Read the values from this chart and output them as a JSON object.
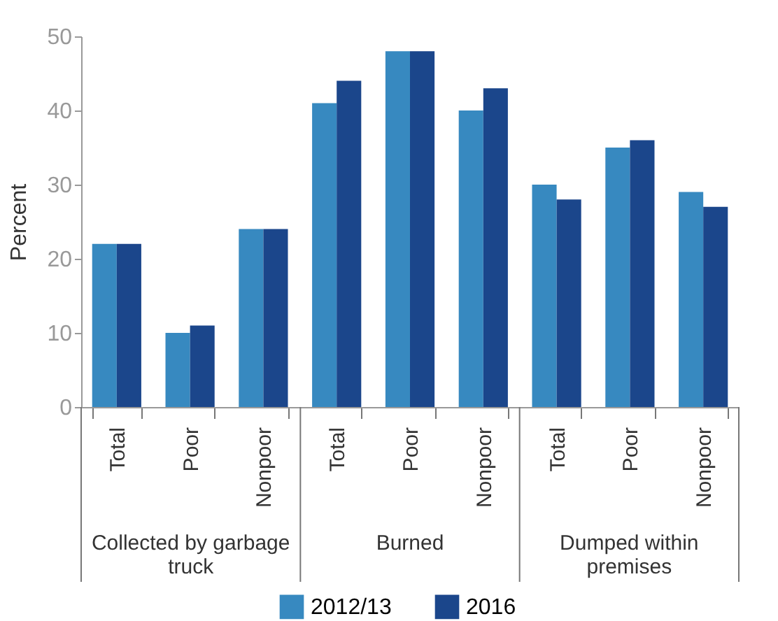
{
  "chart_data": {
    "type": "bar",
    "ylabel": "Percent",
    "categories": [
      "Total",
      "Poor",
      "Nonpoor",
      "Total",
      "Poor",
      "Nonpoor",
      "Total",
      "Poor",
      "Nonpoor"
    ],
    "annotations": [
      "Collected by garbage truck",
      "Burned",
      "Dumped within premises"
    ],
    "series": [
      {
        "name": "2012/13",
        "color": "#3789c0",
        "values": [
          22,
          10,
          24,
          41,
          48,
          40,
          30,
          35,
          29
        ]
      },
      {
        "name": "2016",
        "color": "#1b468b",
        "values": [
          22,
          11,
          24,
          44,
          48,
          43,
          28,
          36,
          27
        ]
      }
    ],
    "ylim": [
      0,
      50
    ],
    "yticks": [
      0,
      10,
      20,
      30,
      40,
      50
    ],
    "grid": false,
    "legend": "bottom"
  }
}
